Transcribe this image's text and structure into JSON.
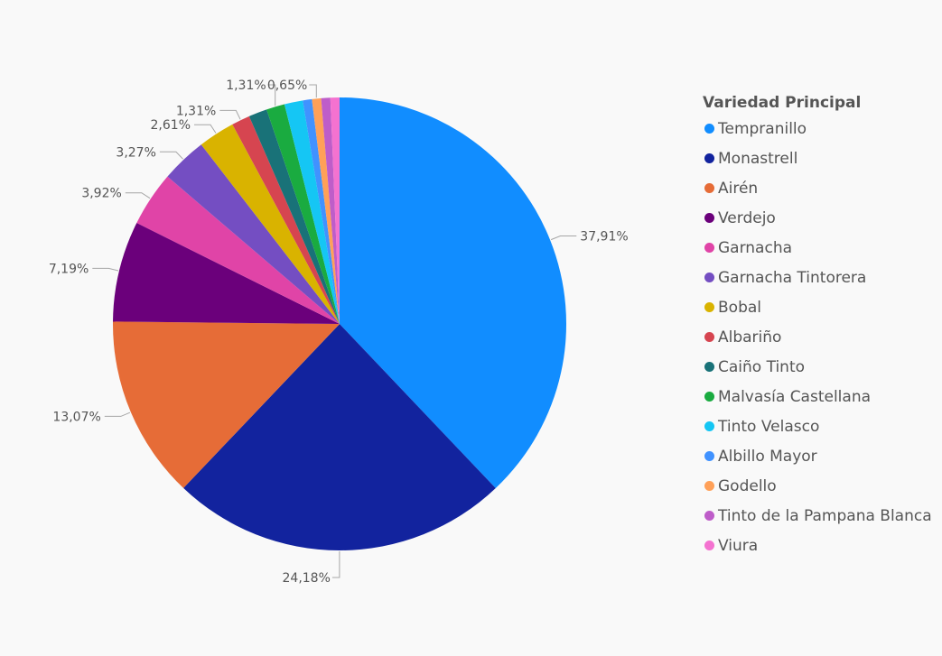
{
  "chart_data": {
    "type": "pie",
    "title": "",
    "legend_title": "Variedad Principal",
    "legend_position": "right",
    "categories": [
      "Tempranillo",
      "Monastrell",
      "Airén",
      "Verdejo",
      "Garnacha",
      "Garnacha Tintorera",
      "Bobal",
      "Albariño",
      "Caiño Tinto",
      "Malvasía Castellana",
      "Tinto Velasco",
      "Albillo Mayor",
      "Godello",
      "Tinto de la Pampana Blanca",
      "Viura"
    ],
    "values": [
      37.91,
      24.18,
      13.07,
      7.19,
      3.92,
      3.27,
      2.61,
      1.31,
      1.31,
      1.31,
      1.31,
      0.65,
      0.65,
      0.65,
      0.65
    ],
    "data_labels": [
      "37,91%",
      "24,18%",
      "13,07%",
      "7,19%",
      "3,92%",
      "3,27%",
      "2,61%",
      "1,31%",
      "",
      "1,31%",
      "",
      "",
      "0,65%",
      "",
      ""
    ],
    "colors": [
      "#118dff",
      "#12239e",
      "#e66c37",
      "#6b007b",
      "#e044a7",
      "#744ec2",
      "#d9b300",
      "#d64550",
      "#197278",
      "#1aab40",
      "#15c6f4",
      "#4092ff",
      "#ffa058",
      "#be5dc9",
      "#f472d0"
    ]
  }
}
